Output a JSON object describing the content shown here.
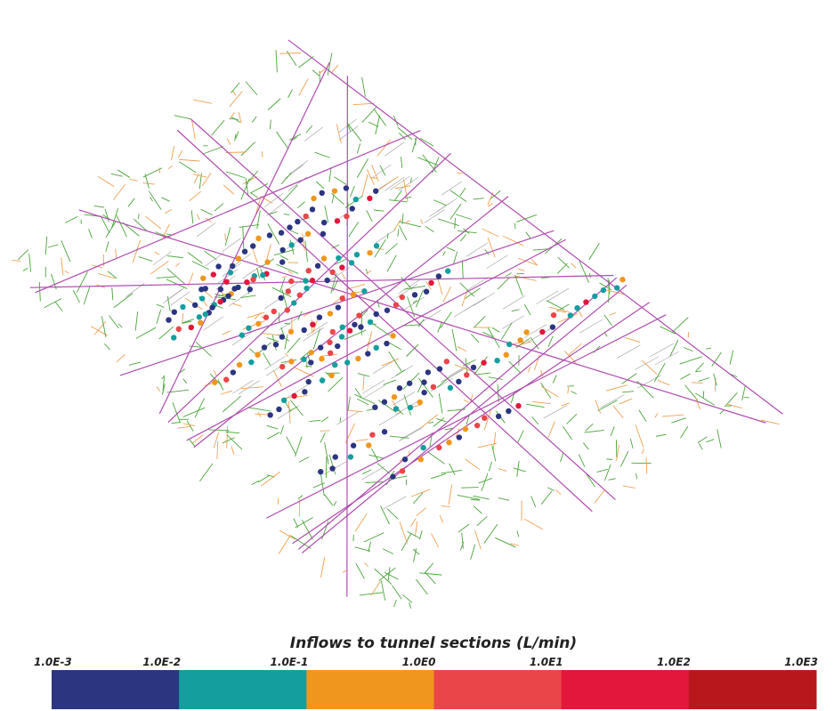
{
  "colorbar": {
    "title": "Inflows to tunnel sections (L/min)",
    "tick_labels": [
      "1.0E-3",
      "1.0E-2",
      "1.0E-1",
      "1.0E0",
      "1.0E1",
      "1.0E2",
      "1.0E3"
    ],
    "colors": [
      "#2b3580",
      "#159e9e",
      "#f0961e",
      "#ea4549",
      "#e3163b",
      "#b8181c"
    ]
  }
}
